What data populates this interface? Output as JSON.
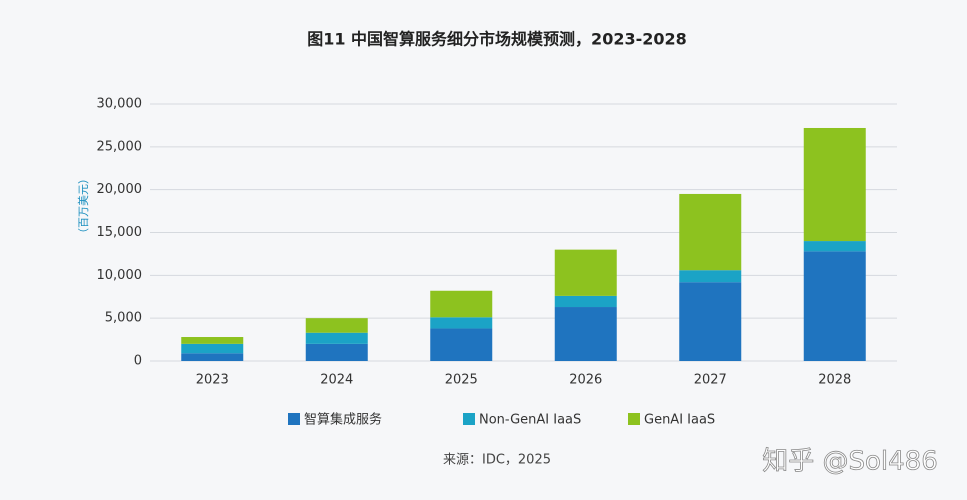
{
  "chart_data": {
    "type": "stacked_bar",
    "title": "图11 中国智算服务细分市场规模预测，2023-2028",
    "y_label": "（百万美元）",
    "categories": [
      "2023",
      "2024",
      "2025",
      "2026",
      "2027",
      "2028"
    ],
    "series": [
      {
        "name": "智算集成服务",
        "color": "#1f74bf",
        "values": [
          900,
          2000,
          3800,
          6300,
          9200,
          12800
        ]
      },
      {
        "name": "Non-GenAI IaaS",
        "color": "#1ba3c6",
        "values": [
          1100,
          1300,
          1300,
          1300,
          1400,
          1200
        ]
      },
      {
        "name": "GenAI IaaS",
        "color": "#8dc21f",
        "values": [
          800,
          1700,
          3100,
          5400,
          8900,
          13200
        ]
      }
    ],
    "ylim": [
      0,
      30000
    ],
    "yticks": [
      0,
      {
        "value": 5000,
        "label": "5,000"
      },
      {
        "value": 10000,
        "label": "10,000"
      },
      {
        "value": 15000,
        "label": "15,000"
      },
      {
        "value": 20000,
        "label": "20,000"
      },
      {
        "value": 25000,
        "label": "25,000"
      },
      {
        "value": 30000,
        "label": "30,000"
      }
    ],
    "grid": true,
    "source": "来源：IDC，2025",
    "watermark": "知乎 @Sol486"
  }
}
